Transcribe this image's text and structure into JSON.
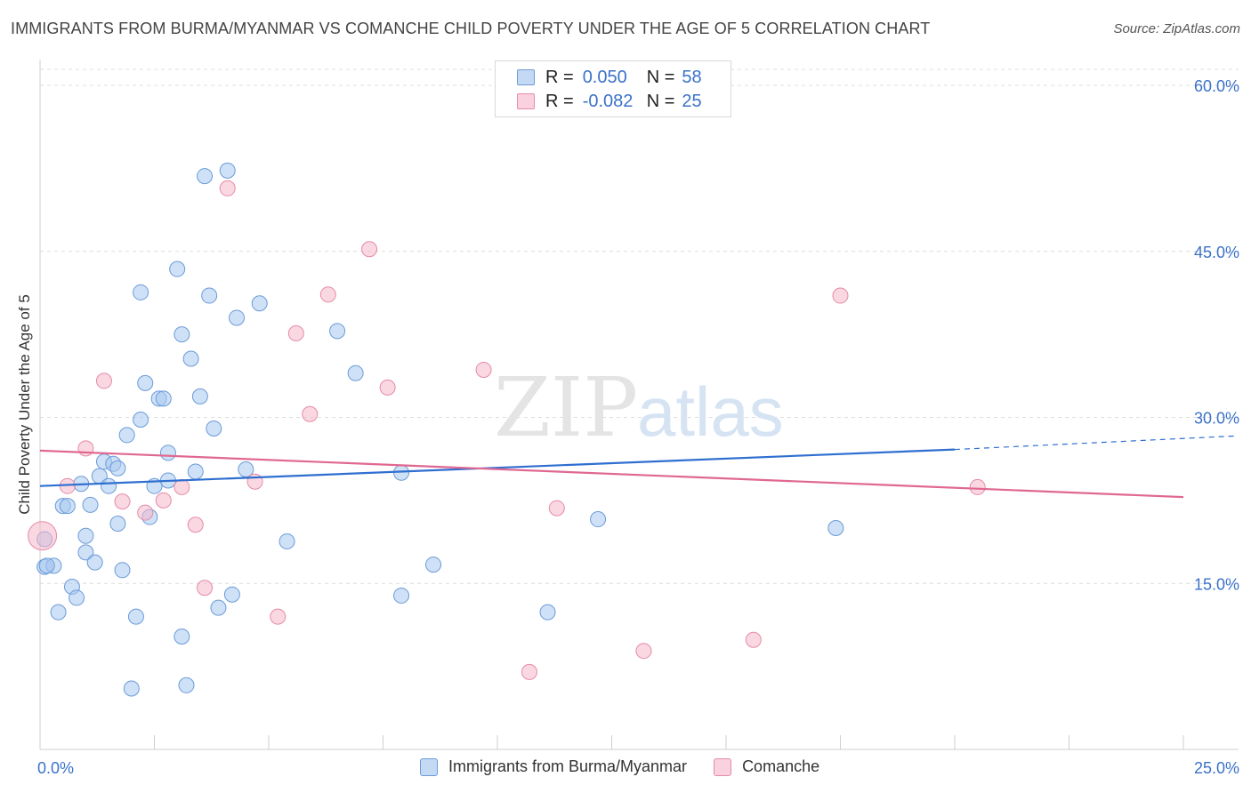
{
  "title": "IMMIGRANTS FROM BURMA/MYANMAR VS COMANCHE CHILD POVERTY UNDER THE AGE OF 5 CORRELATION CHART",
  "source": "Source: ZipAtlas.com",
  "watermark": {
    "zip": "ZIP",
    "atlas": "atlas"
  },
  "legend_stats": [
    {
      "r_label": "R =",
      "r_value": "0.050",
      "n_label": "N =",
      "n_value": "58",
      "color": "#a8c8f0"
    },
    {
      "r_label": "R =",
      "r_value": "-0.082",
      "n_label": "N =",
      "n_value": "25",
      "color": "#f5b8cb"
    }
  ],
  "chart_data": {
    "type": "scatter",
    "title": "IMMIGRANTS FROM BURMA/MYANMAR VS COMANCHE CHILD POVERTY UNDER THE AGE OF 5 CORRELATION CHART",
    "xlabel": "",
    "ylabel": "Child Poverty Under the Age of 5",
    "xlim": [
      0,
      25
    ],
    "ylim": [
      0,
      60
    ],
    "x_tick_labels": [
      {
        "value": 0,
        "label": "0.0%"
      },
      {
        "value": 25,
        "label": "25.0%"
      }
    ],
    "y_tick_labels": [
      {
        "value": 15,
        "label": "15.0%"
      },
      {
        "value": 30,
        "label": "30.0%"
      },
      {
        "value": 45,
        "label": "45.0%"
      },
      {
        "value": 60,
        "label": "60.0%"
      }
    ],
    "grid": true,
    "series": [
      {
        "name": "Immigrants from Burma/Myanmar",
        "color": "#a8c8f0",
        "stroke": "#6b9bd8",
        "line_color": "#2f6fd0",
        "trend": {
          "x_start": 0,
          "y_start": 23.8,
          "x_solid_end": 20,
          "y_solid_end": 27.1,
          "x_end": 25,
          "y_end": 28.0
        },
        "points": [
          [
            0.1,
            19.0
          ],
          [
            0.1,
            16.5
          ],
          [
            0.3,
            16.6
          ],
          [
            0.4,
            12.4
          ],
          [
            0.5,
            22.0
          ],
          [
            0.6,
            22.0
          ],
          [
            0.7,
            14.7
          ],
          [
            0.8,
            13.7
          ],
          [
            0.9,
            24.0
          ],
          [
            1.0,
            19.3
          ],
          [
            1.0,
            17.8
          ],
          [
            1.2,
            16.9
          ],
          [
            1.1,
            22.1
          ],
          [
            1.3,
            24.7
          ],
          [
            1.4,
            26.0
          ],
          [
            1.5,
            23.8
          ],
          [
            1.6,
            25.8
          ],
          [
            1.7,
            25.4
          ],
          [
            1.7,
            20.4
          ],
          [
            1.8,
            16.2
          ],
          [
            1.9,
            28.4
          ],
          [
            2.0,
            5.5
          ],
          [
            2.1,
            12.0
          ],
          [
            2.2,
            41.3
          ],
          [
            2.2,
            29.8
          ],
          [
            2.3,
            33.1
          ],
          [
            2.4,
            21.0
          ],
          [
            2.5,
            23.8
          ],
          [
            2.6,
            31.7
          ],
          [
            2.7,
            31.7
          ],
          [
            2.8,
            24.3
          ],
          [
            2.8,
            26.8
          ],
          [
            3.0,
            43.4
          ],
          [
            3.1,
            37.5
          ],
          [
            3.1,
            10.2
          ],
          [
            3.2,
            5.8
          ],
          [
            3.3,
            35.3
          ],
          [
            3.4,
            25.1
          ],
          [
            3.5,
            31.9
          ],
          [
            3.6,
            51.8
          ],
          [
            3.7,
            41.0
          ],
          [
            3.8,
            29.0
          ],
          [
            3.9,
            12.8
          ],
          [
            4.1,
            52.3
          ],
          [
            4.2,
            14.0
          ],
          [
            4.3,
            39.0
          ],
          [
            4.5,
            25.3
          ],
          [
            4.8,
            40.3
          ],
          [
            5.4,
            18.8
          ],
          [
            6.5,
            37.8
          ],
          [
            6.9,
            34.0
          ],
          [
            7.9,
            13.9
          ],
          [
            7.9,
            25.0
          ],
          [
            8.6,
            16.7
          ],
          [
            11.1,
            12.4
          ],
          [
            12.2,
            20.8
          ],
          [
            17.4,
            20.0
          ],
          [
            0.15,
            16.6
          ]
        ]
      },
      {
        "name": "Comanche",
        "color": "#f5b8cb",
        "stroke": "#e68aa8",
        "line_color": "#e06890",
        "trend": {
          "x_start": 0,
          "y_start": 27.0,
          "x_solid_end": 25,
          "y_solid_end": 22.8,
          "x_end": 25,
          "y_end": 22.8
        },
        "points": [
          [
            0.05,
            19.3
          ],
          [
            0.6,
            23.8
          ],
          [
            1.0,
            27.2
          ],
          [
            1.4,
            33.3
          ],
          [
            1.8,
            22.4
          ],
          [
            2.3,
            21.4
          ],
          [
            2.7,
            22.5
          ],
          [
            3.1,
            23.7
          ],
          [
            3.4,
            20.3
          ],
          [
            3.6,
            14.6
          ],
          [
            4.1,
            50.7
          ],
          [
            4.7,
            24.2
          ],
          [
            5.2,
            12.0
          ],
          [
            5.6,
            37.6
          ],
          [
            5.9,
            30.3
          ],
          [
            6.3,
            41.1
          ],
          [
            7.2,
            45.2
          ],
          [
            7.6,
            32.7
          ],
          [
            9.7,
            34.3
          ],
          [
            10.7,
            7.0
          ],
          [
            11.3,
            21.8
          ],
          [
            13.2,
            8.9
          ],
          [
            15.6,
            9.9
          ],
          [
            17.5,
            41.0
          ],
          [
            20.5,
            23.7
          ]
        ]
      }
    ]
  }
}
